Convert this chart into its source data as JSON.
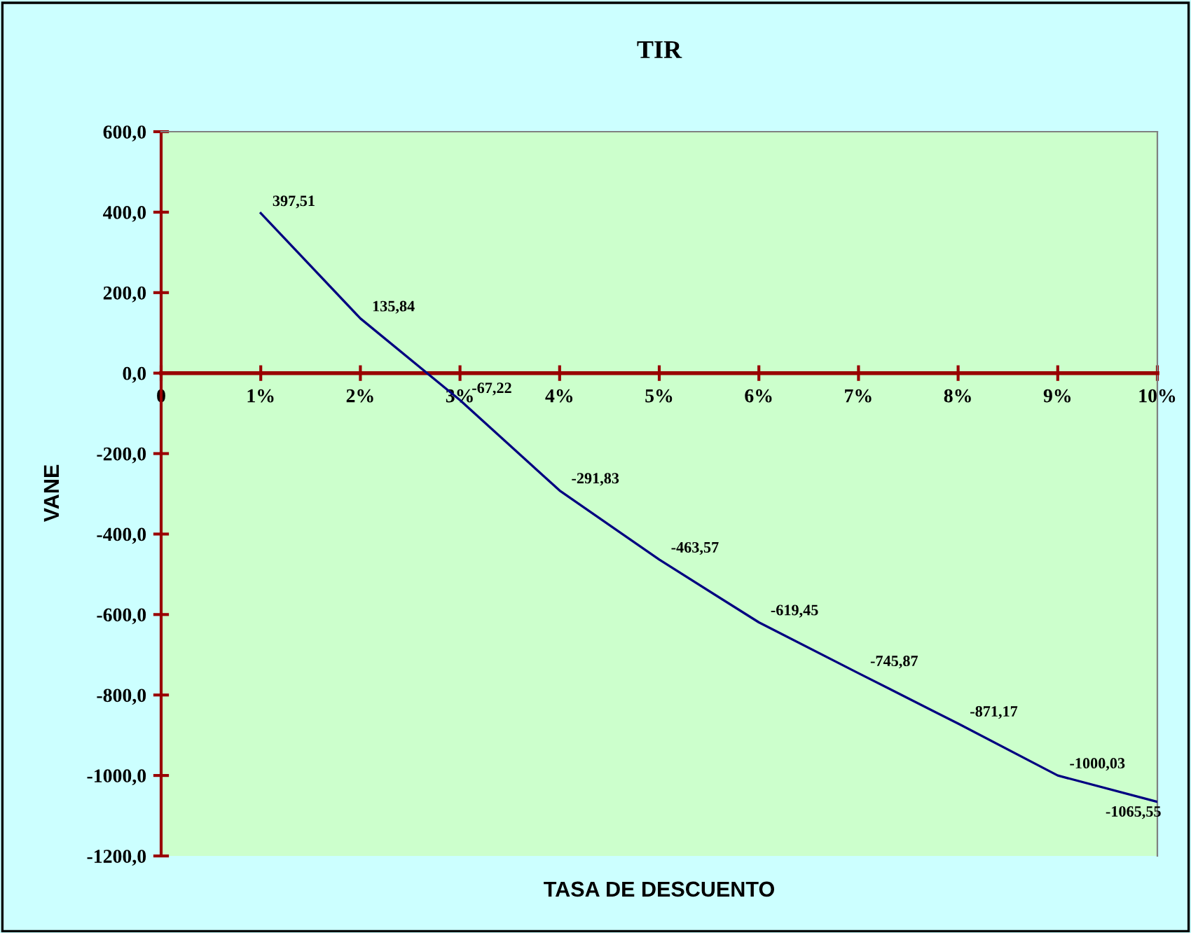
{
  "chart_data": {
    "type": "line",
    "title": "TIR",
    "xlabel": "TASA DE DESCUENTO",
    "ylabel": "VANE",
    "categories": [
      "0",
      "1%",
      "2%",
      "3%",
      "4%",
      "5%",
      "6%",
      "7%",
      "8%",
      "9%",
      "10%"
    ],
    "series": [
      {
        "color": "#000080",
        "values": [
          null,
          397.51,
          135.84,
          -67.22,
          -291.83,
          -463.57,
          -619.45,
          -745.87,
          -871.17,
          -1000.03,
          -1065.55
        ],
        "value_labels": [
          null,
          "397,51",
          "135,84",
          "-67,22",
          "-291,83",
          "-463,57",
          "-619,45",
          "-745,87",
          "-871,17",
          "-1000,03",
          "-1065,55"
        ]
      }
    ],
    "ylim": [
      -1200,
      600
    ],
    "yticks": [
      {
        "value": 600,
        "label": "600,0"
      },
      {
        "value": 400,
        "label": "400,0"
      },
      {
        "value": 200,
        "label": "200,0"
      },
      {
        "value": 0,
        "label": "0,0"
      },
      {
        "value": -200,
        "label": "-200,0"
      },
      {
        "value": -400,
        "label": "-400,0"
      },
      {
        "value": -600,
        "label": "-600,0"
      },
      {
        "value": -800,
        "label": "-800,0"
      },
      {
        "value": -1000,
        "label": "-1000,0"
      },
      {
        "value": -1200,
        "label": "-1200,0"
      }
    ],
    "grid": false,
    "legend": false,
    "marker": "none",
    "line_style": "solid"
  }
}
